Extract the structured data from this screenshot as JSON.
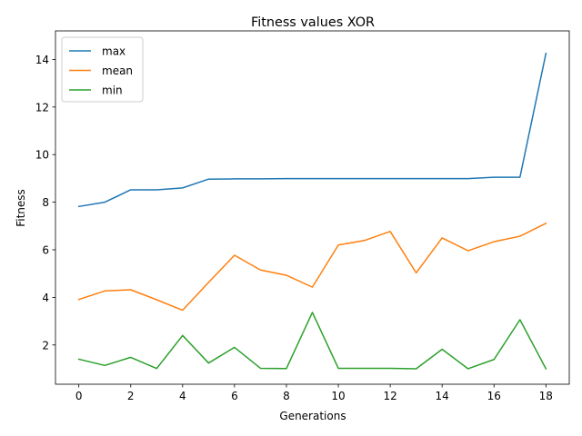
{
  "chart_data": {
    "type": "line",
    "title": "Fitness values XOR",
    "xlabel": "Generations",
    "ylabel": "Fitness",
    "x": [
      0,
      1,
      2,
      3,
      4,
      5,
      6,
      7,
      8,
      9,
      10,
      11,
      12,
      13,
      14,
      15,
      16,
      17,
      18
    ],
    "xlim": [
      -0.9,
      18.9
    ],
    "ylim": [
      0.35,
      15.2
    ],
    "xticks": [
      0,
      2,
      4,
      6,
      8,
      10,
      12,
      14,
      16,
      18
    ],
    "yticks": [
      2,
      4,
      6,
      8,
      10,
      12,
      14
    ],
    "grid": false,
    "legend_position": "upper-left",
    "series": [
      {
        "name": "max",
        "color": "#1f77b4",
        "values": [
          7.82,
          8.0,
          8.52,
          8.52,
          8.6,
          8.97,
          8.98,
          8.98,
          8.99,
          8.99,
          8.99,
          8.99,
          8.99,
          8.99,
          8.99,
          8.99,
          9.05,
          9.05,
          14.25
        ]
      },
      {
        "name": "mean",
        "color": "#ff7f0e",
        "values": [
          3.91,
          4.27,
          4.32,
          3.9,
          3.46,
          4.63,
          5.77,
          5.15,
          4.93,
          4.43,
          6.2,
          6.39,
          6.77,
          5.03,
          6.5,
          5.96,
          6.34,
          6.57,
          7.11
        ]
      },
      {
        "name": "min",
        "color": "#2ca02c",
        "values": [
          1.4,
          1.14,
          1.48,
          1.01,
          2.4,
          1.24,
          1.9,
          1.02,
          1.01,
          3.37,
          1.02,
          1.02,
          1.02,
          1.0,
          1.82,
          1.0,
          1.39,
          3.06,
          1.0
        ]
      }
    ]
  }
}
